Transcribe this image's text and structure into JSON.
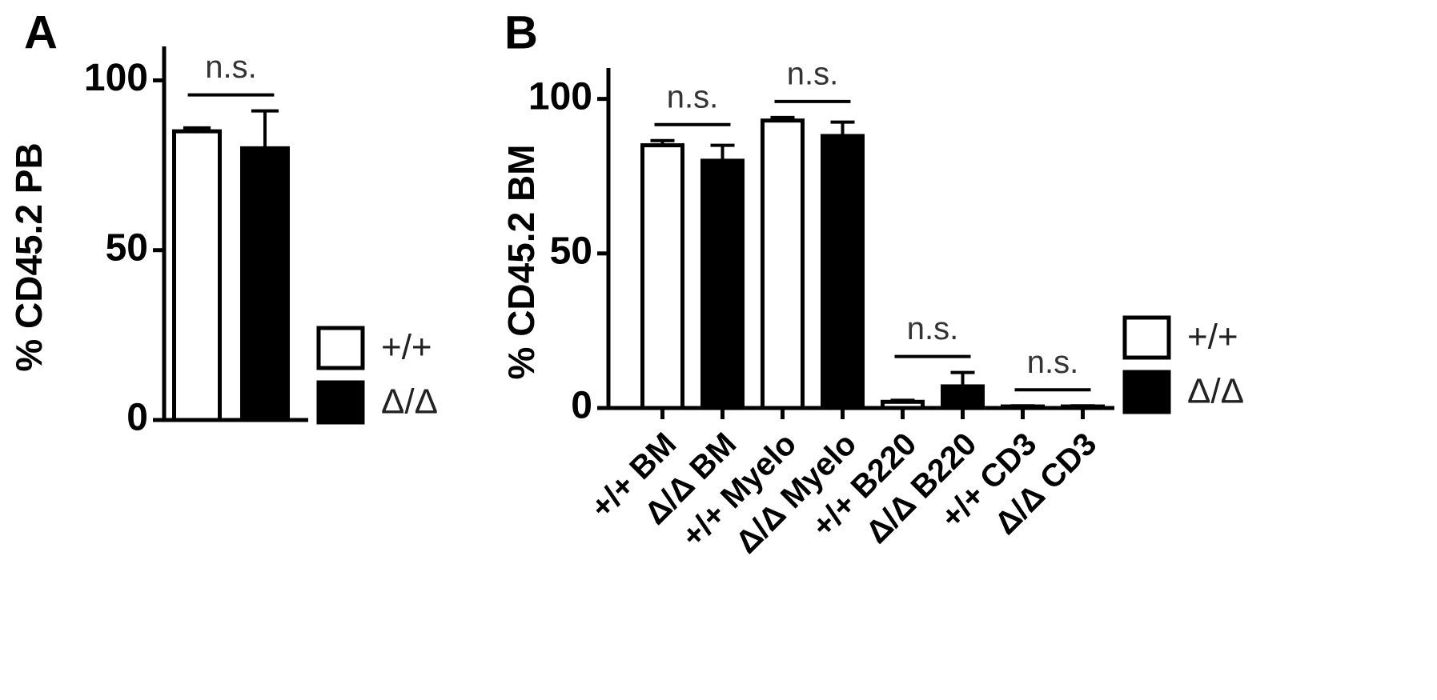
{
  "chart_data": [
    {
      "type": "bar",
      "panel_label": "A",
      "ylabel": "% CD45.2 PB",
      "series": [
        {
          "name": "+/+",
          "color": "#ffffff",
          "values": [
            85
          ],
          "errors": [
            1
          ]
        },
        {
          "name": "Δ/Δ",
          "color": "#000000",
          "values": [
            80
          ],
          "errors": [
            11
          ]
        }
      ],
      "annotations": [
        "n.s."
      ],
      "ylim": [
        0,
        110
      ],
      "yticks": [
        0,
        50,
        100
      ],
      "legend": "right"
    },
    {
      "type": "bar",
      "panel_label": "B",
      "ylabel": "% CD45.2 BM",
      "categories": [
        "+/+ BM",
        "Δ/Δ BM",
        "+/+ Myelo",
        "Δ/Δ Myelo",
        "+/+ B220",
        "Δ/Δ B220",
        "+/+ CD3",
        "Δ/Δ CD3"
      ],
      "series": [
        {
          "name": "+/+",
          "color": "#ffffff",
          "values": [
            85,
            null,
            93,
            null,
            2,
            null,
            0.5,
            null
          ],
          "errors": [
            1.5,
            null,
            1,
            null,
            0.5,
            null,
            0.2,
            null
          ]
        },
        {
          "name": "Δ/Δ",
          "color": "#000000",
          "values": [
            null,
            80,
            null,
            88,
            null,
            7,
            null,
            0.5
          ],
          "errors": [
            null,
            5,
            null,
            4.5,
            null,
            4.5,
            null,
            0.2
          ]
        }
      ],
      "annotations": [
        "n.s.",
        "n.s.",
        "n.s.",
        "n.s."
      ],
      "ylim": [
        0,
        110
      ],
      "yticks": [
        0,
        50,
        100
      ],
      "legend": "right"
    }
  ]
}
